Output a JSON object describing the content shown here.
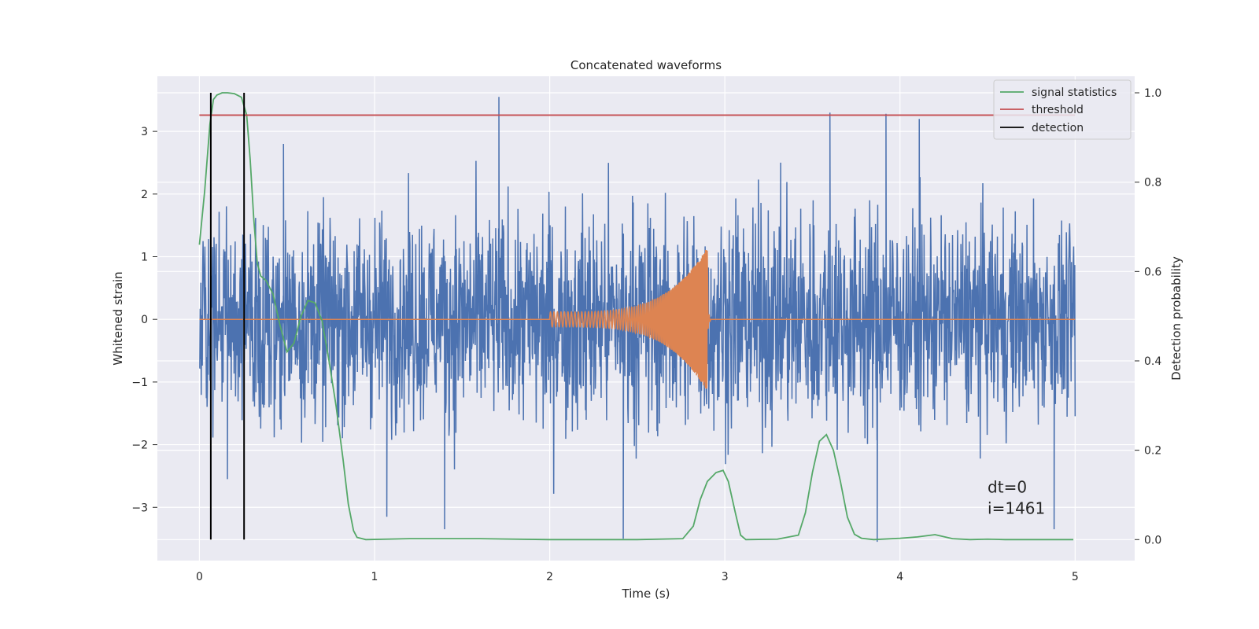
{
  "chart_data": {
    "type": "line",
    "title": "Concatenated waveforms",
    "xlabel": "Time (s)",
    "ylabel": "Whitened strain",
    "y2label": "Detection probability",
    "xlim": [
      -0.24,
      5.34
    ],
    "ylim": [
      -3.85,
      3.88
    ],
    "y2lim": [
      -0.047,
      1.037
    ],
    "xticks": [
      0,
      1,
      2,
      3,
      4,
      5
    ],
    "yticks": [
      -3,
      -2,
      -1,
      0,
      1,
      2,
      3
    ],
    "y2ticks": [
      0.0,
      0.2,
      0.4,
      0.6,
      0.8,
      1.0
    ],
    "xtick_labels": [
      "0",
      "1",
      "2",
      "3",
      "4",
      "5"
    ],
    "ytick_labels": [
      "−3",
      "−2",
      "−1",
      "0",
      "1",
      "2",
      "3"
    ],
    "y2tick_labels": [
      "0.0",
      "0.2",
      "0.4",
      "0.6",
      "0.8",
      "1.0"
    ],
    "grid": true,
    "legend_position": "top-right",
    "colors": {
      "strain": "#4c72b0",
      "waveform": "#dd8452",
      "signal_statistics": "#55a868",
      "threshold": "#c44e52",
      "detection": "#000000",
      "background": "#eaeaf2",
      "grid": "#ffffff"
    },
    "series": [
      {
        "name": "",
        "axis": "left",
        "kind": "noise",
        "x_range": [
          0,
          5
        ],
        "envelope": [
          [
            0.0,
            1.9
          ],
          [
            0.25,
            2.0
          ],
          [
            0.5,
            2.2
          ],
          [
            0.75,
            2.1
          ],
          [
            1.0,
            2.05
          ],
          [
            1.25,
            2.1
          ],
          [
            1.5,
            2.2
          ],
          [
            1.75,
            2.1
          ],
          [
            2.0,
            2.3
          ],
          [
            2.25,
            2.3
          ],
          [
            2.5,
            2.3
          ],
          [
            2.75,
            2.3
          ],
          [
            3.0,
            2.3
          ],
          [
            3.25,
            2.3
          ],
          [
            3.5,
            2.3
          ],
          [
            3.75,
            2.2
          ],
          [
            4.0,
            2.2
          ],
          [
            4.25,
            2.1
          ],
          [
            4.5,
            2.1
          ],
          [
            4.75,
            2.0
          ],
          [
            5.0,
            1.9
          ]
        ],
        "spikes": [
          [
            1.71,
            3.55
          ],
          [
            3.6,
            3.3
          ],
          [
            3.92,
            3.28
          ],
          [
            4.11,
            3.2
          ],
          [
            0.48,
            2.8
          ],
          [
            2.42,
            -3.5
          ],
          [
            3.87,
            -3.55
          ],
          [
            4.88,
            -3.35
          ],
          [
            1.4,
            -3.35
          ],
          [
            1.07,
            -3.15
          ],
          [
            0.16,
            -2.55
          ]
        ]
      },
      {
        "name": "",
        "axis": "left",
        "kind": "chirp",
        "start": 2.0,
        "merger": 2.9,
        "peak_amplitude": 1.15,
        "start_amplitude": 0.12,
        "start_frequency_hz": 50,
        "end_frequency_hz": 220
      },
      {
        "name": "signal statistics",
        "axis": "right",
        "x": [
          0.0,
          0.03,
          0.06,
          0.08,
          0.1,
          0.13,
          0.16,
          0.2,
          0.24,
          0.27,
          0.29,
          0.31,
          0.33,
          0.35,
          0.38,
          0.42,
          0.46,
          0.5,
          0.54,
          0.58,
          0.62,
          0.66,
          0.7,
          0.74,
          0.78,
          0.82,
          0.85,
          0.88,
          0.9,
          0.95,
          1.2,
          1.6,
          2.0,
          2.5,
          2.76,
          2.82,
          2.86,
          2.9,
          2.95,
          2.99,
          3.02,
          3.06,
          3.09,
          3.12,
          3.3,
          3.42,
          3.46,
          3.5,
          3.54,
          3.58,
          3.62,
          3.66,
          3.7,
          3.74,
          3.78,
          3.85,
          4.0,
          4.1,
          4.2,
          4.3,
          4.4,
          4.5,
          4.6,
          4.99
        ],
        "y": [
          0.66,
          0.78,
          0.93,
          0.985,
          0.995,
          1.0,
          1.0,
          0.998,
          0.99,
          0.95,
          0.85,
          0.72,
          0.62,
          0.59,
          0.58,
          0.55,
          0.48,
          0.42,
          0.44,
          0.5,
          0.535,
          0.53,
          0.49,
          0.4,
          0.3,
          0.18,
          0.08,
          0.02,
          0.005,
          0.0,
          0.002,
          0.002,
          0.0,
          0.0,
          0.002,
          0.03,
          0.09,
          0.13,
          0.15,
          0.155,
          0.13,
          0.06,
          0.01,
          0.0,
          0.001,
          0.01,
          0.06,
          0.15,
          0.22,
          0.235,
          0.2,
          0.13,
          0.05,
          0.012,
          0.003,
          0.0,
          0.003,
          0.006,
          0.011,
          0.002,
          0.0,
          0.001,
          0.0,
          0.0
        ]
      },
      {
        "name": "threshold",
        "axis": "right",
        "x": [
          0.0,
          5.0
        ],
        "y": [
          0.95,
          0.95
        ]
      },
      {
        "name": "detection",
        "axis": "right",
        "x": [
          0.065,
          0.255
        ],
        "vertical": true,
        "y_range": [
          0.0,
          1.0
        ]
      }
    ],
    "annotations": [
      {
        "text": "dt=0",
        "x": 4.5,
        "y": 0.105,
        "axis": "right"
      },
      {
        "text": "i=1461",
        "x": 4.5,
        "y": 0.058,
        "axis": "right"
      }
    ]
  }
}
